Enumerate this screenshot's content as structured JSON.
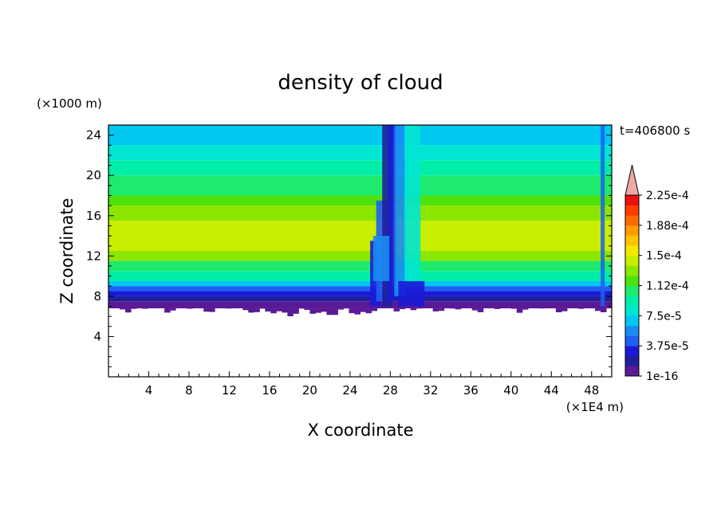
{
  "chart_data": {
    "type": "heatmap",
    "title": "density of cloud",
    "xlabel": "X coordinate",
    "ylabel": "Z coordinate",
    "x_unit": "(×1E4 m)",
    "y_unit": "(×1000 m)",
    "time_label": "t=406800 s",
    "xlim": [
      0,
      50
    ],
    "ylim": [
      0,
      25
    ],
    "x_ticks": [
      4,
      8,
      12,
      16,
      20,
      24,
      28,
      32,
      36,
      40,
      44,
      48
    ],
    "y_ticks": [
      4,
      8,
      12,
      16,
      20,
      24
    ],
    "colorbar": {
      "extend": "max",
      "tick_labels": [
        "1e-16",
        "3.75e-5",
        "7.5e-5",
        "1.12e-4",
        "1.5e-4",
        "1.88e-4",
        "2.25e-4"
      ],
      "colors": [
        "#5a1a96",
        "#1f1f9a",
        "#1a1ad6",
        "#1f5ff2",
        "#1a8cf2",
        "#00c8f0",
        "#00e6d2",
        "#00eda8",
        "#1eea6e",
        "#4ee20a",
        "#8ce600",
        "#c8ee00",
        "#f0ea00",
        "#ffc400",
        "#ff9c00",
        "#ff6a00",
        "#ff3c00",
        "#ee1010"
      ],
      "extend_color": "#f0a8a8"
    },
    "levels": [
      {
        "z_top": 7.5,
        "level": 0
      },
      {
        "z_top": 8.0,
        "level": 1
      },
      {
        "z_top": 8.5,
        "level": 2
      },
      {
        "z_top": 9.0,
        "level": 3
      },
      {
        "z_top": 9.5,
        "level": 5
      },
      {
        "z_top": 10.5,
        "level": 7
      },
      {
        "z_top": 11.5,
        "level": 8
      },
      {
        "z_top": 12.5,
        "level": 10
      },
      {
        "z_top": 15.5,
        "level": 11
      },
      {
        "z_top": 17.0,
        "level": 10
      },
      {
        "z_top": 18.0,
        "level": 9
      },
      {
        "z_top": 20.0,
        "level": 8
      },
      {
        "z_top": 21.5,
        "level": 7
      },
      {
        "z_top": 23.0,
        "level": 6
      },
      {
        "z_top": 25.0,
        "level": 5
      }
    ]
  }
}
